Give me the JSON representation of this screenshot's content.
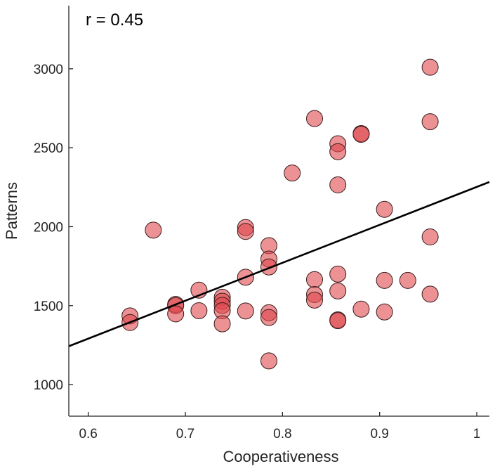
{
  "chart_data": {
    "type": "scatter",
    "xlabel": "Cooperativeness",
    "ylabel": "Patterns",
    "xlim": [
      0.58,
      1.013
    ],
    "ylim": [
      800,
      3400
    ],
    "xticks": [
      0.6,
      0.7,
      0.8,
      0.9,
      1
    ],
    "xtick_labels": [
      "0.6",
      "0.7",
      "0.8",
      "0.9",
      "1"
    ],
    "yticks": [
      1000,
      1500,
      2000,
      2500,
      3000
    ],
    "ytick_labels": [
      "1000",
      "1500",
      "2000",
      "2500",
      "3000"
    ],
    "annotation": "r = 0.45",
    "grid": false,
    "legend": "none",
    "point_color": "#e0474c",
    "point_edge_color": "#3a1d1d",
    "point_opacity": 0.6,
    "fit_line": {
      "color": "#000000",
      "x": [
        0.58,
        1.013
      ],
      "y": [
        1243,
        2283
      ]
    },
    "points": [
      {
        "x": 0.643,
        "y": 1435
      },
      {
        "x": 0.643,
        "y": 1393
      },
      {
        "x": 0.667,
        "y": 1978
      },
      {
        "x": 0.69,
        "y": 1508
      },
      {
        "x": 0.69,
        "y": 1500
      },
      {
        "x": 0.69,
        "y": 1448
      },
      {
        "x": 0.714,
        "y": 1598
      },
      {
        "x": 0.714,
        "y": 1468
      },
      {
        "x": 0.738,
        "y": 1553
      },
      {
        "x": 0.738,
        "y": 1528
      },
      {
        "x": 0.738,
        "y": 1502
      },
      {
        "x": 0.738,
        "y": 1468
      },
      {
        "x": 0.738,
        "y": 1385
      },
      {
        "x": 0.762,
        "y": 1995
      },
      {
        "x": 0.762,
        "y": 1970
      },
      {
        "x": 0.762,
        "y": 1680
      },
      {
        "x": 0.762,
        "y": 1466
      },
      {
        "x": 0.786,
        "y": 1880
      },
      {
        "x": 0.786,
        "y": 1795
      },
      {
        "x": 0.786,
        "y": 1745
      },
      {
        "x": 0.786,
        "y": 1455
      },
      {
        "x": 0.786,
        "y": 1425
      },
      {
        "x": 0.786,
        "y": 1150
      },
      {
        "x": 0.81,
        "y": 2340
      },
      {
        "x": 0.833,
        "y": 2685
      },
      {
        "x": 0.833,
        "y": 1665
      },
      {
        "x": 0.833,
        "y": 1570
      },
      {
        "x": 0.833,
        "y": 1535
      },
      {
        "x": 0.857,
        "y": 2525
      },
      {
        "x": 0.857,
        "y": 2475
      },
      {
        "x": 0.857,
        "y": 2265
      },
      {
        "x": 0.857,
        "y": 1700
      },
      {
        "x": 0.857,
        "y": 1593
      },
      {
        "x": 0.857,
        "y": 1410
      },
      {
        "x": 0.857,
        "y": 1405
      },
      {
        "x": 0.881,
        "y": 2590
      },
      {
        "x": 0.881,
        "y": 2585
      },
      {
        "x": 0.881,
        "y": 1478
      },
      {
        "x": 0.905,
        "y": 2110
      },
      {
        "x": 0.905,
        "y": 1660
      },
      {
        "x": 0.905,
        "y": 1460
      },
      {
        "x": 0.929,
        "y": 1660
      },
      {
        "x": 0.952,
        "y": 3010
      },
      {
        "x": 0.952,
        "y": 2665
      },
      {
        "x": 0.952,
        "y": 1935
      },
      {
        "x": 0.952,
        "y": 1573
      }
    ]
  }
}
